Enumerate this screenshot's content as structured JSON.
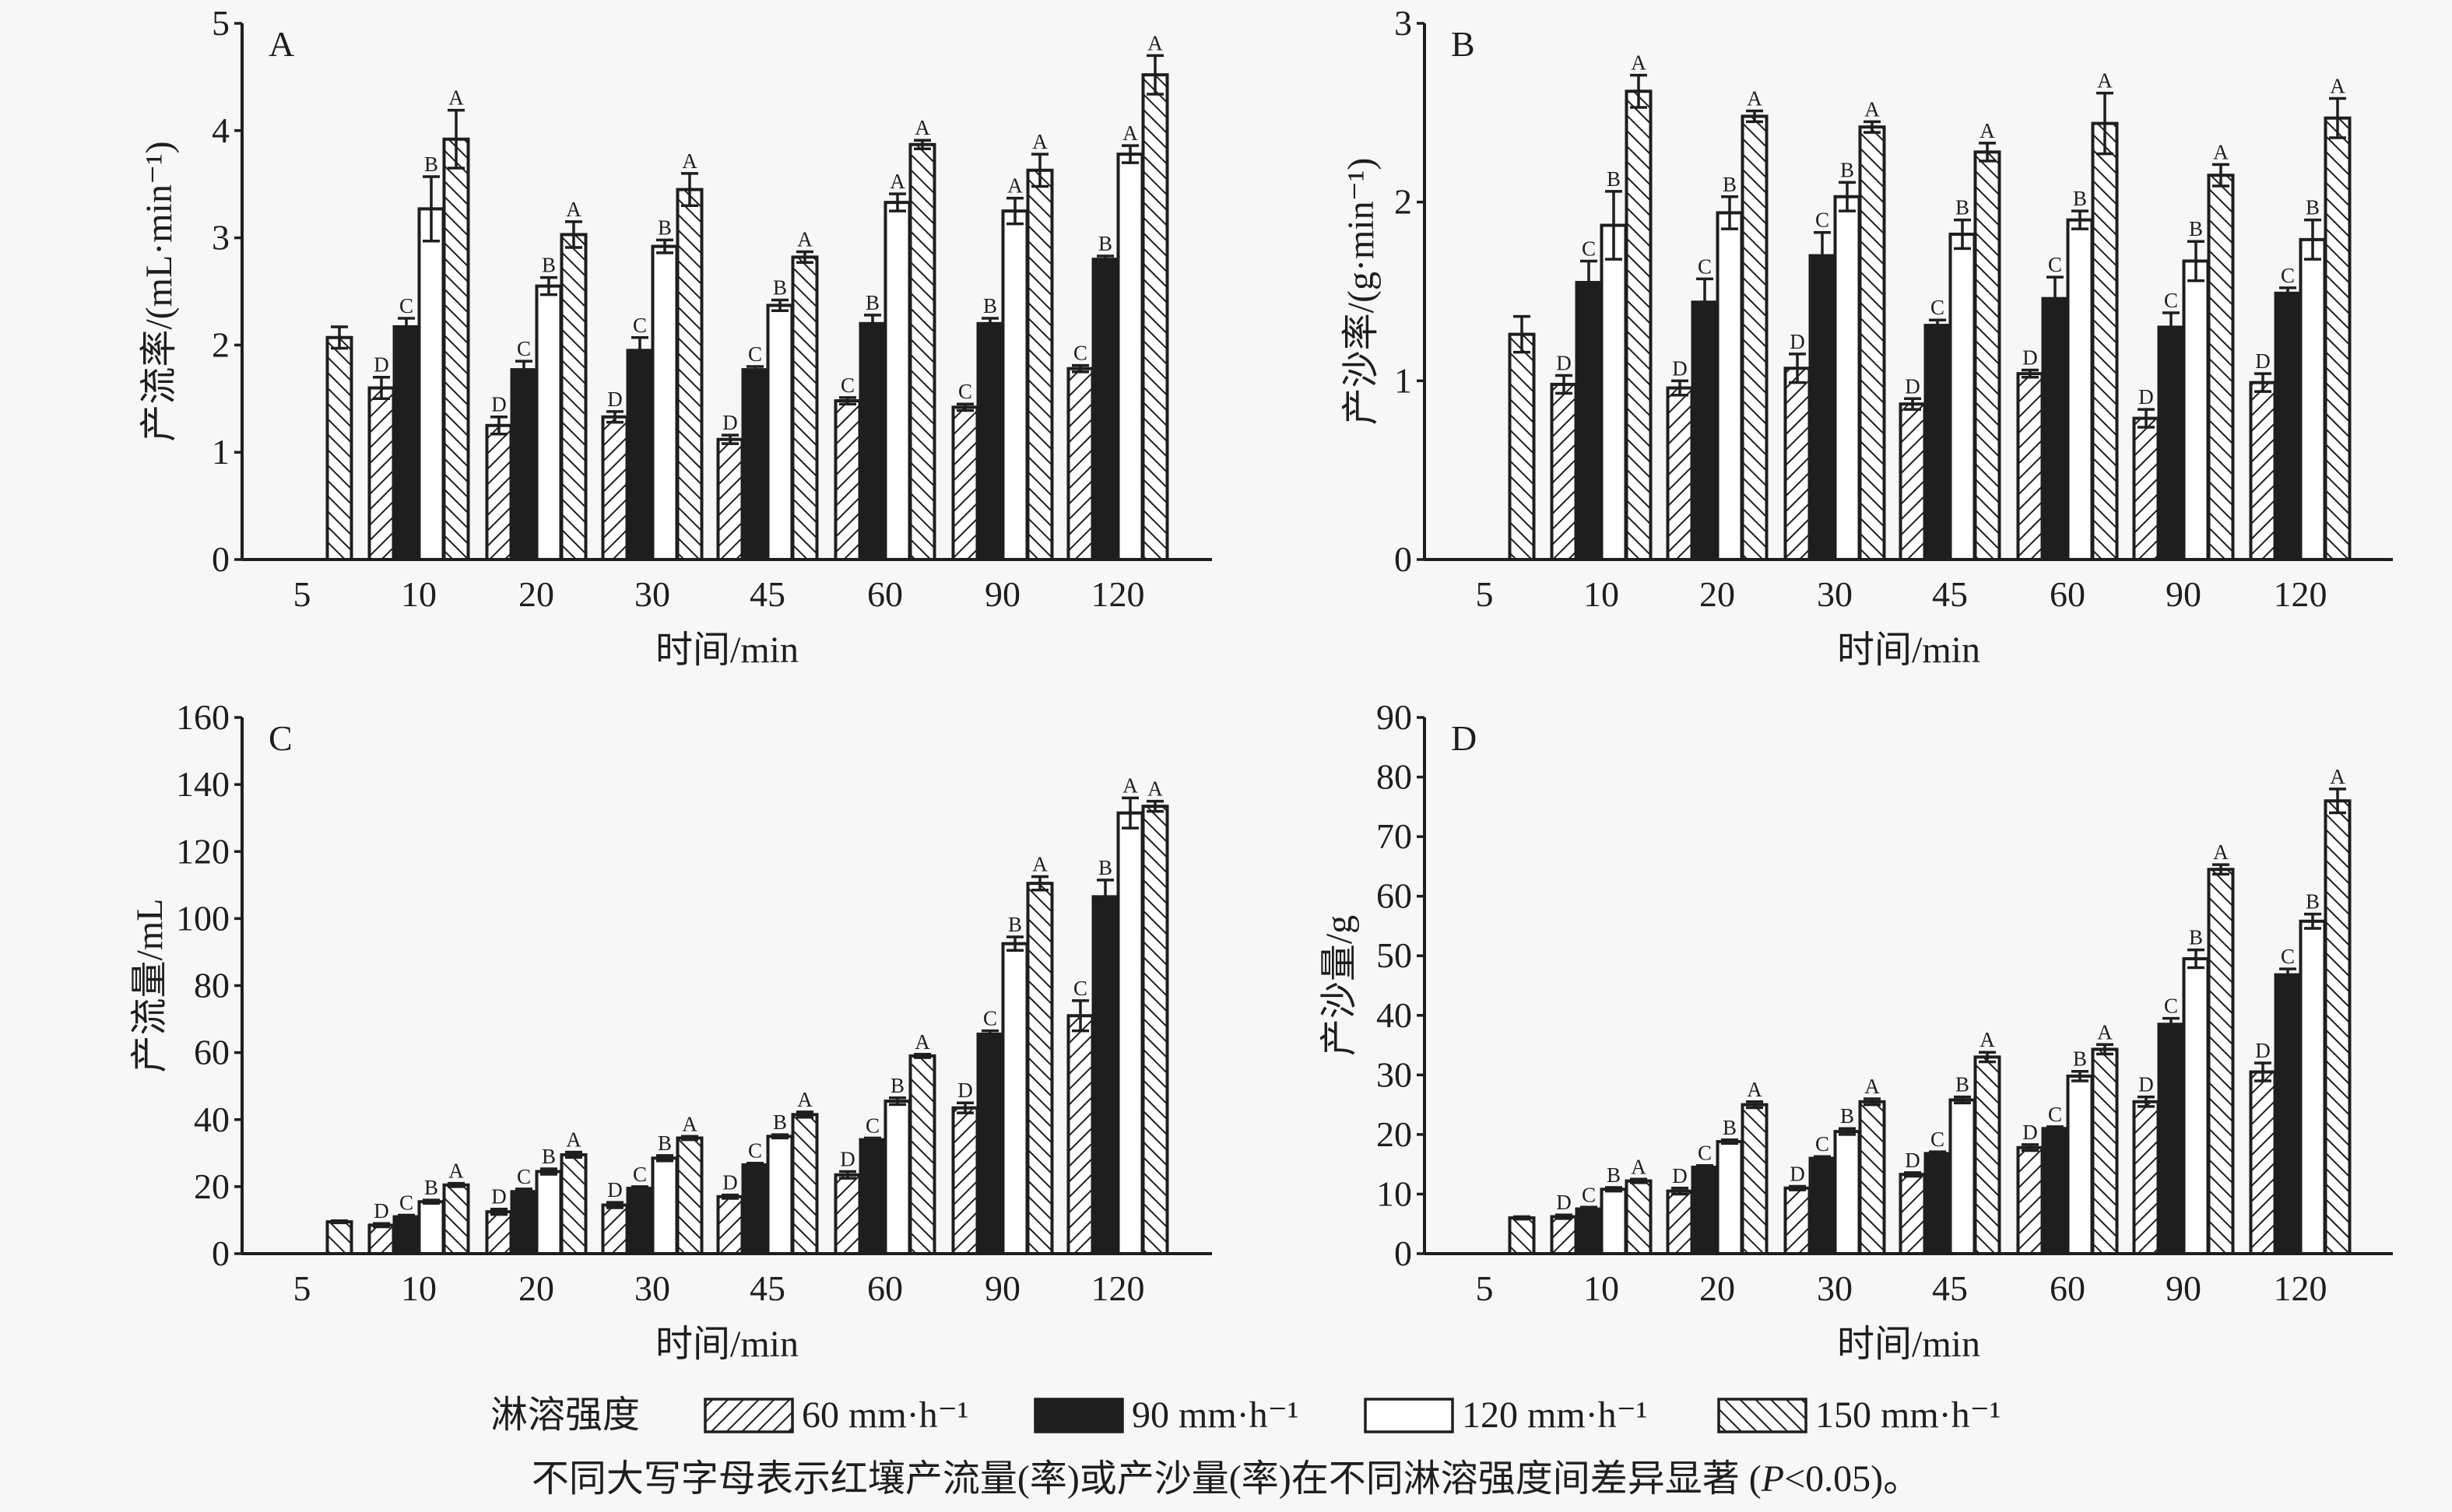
{
  "legend": {
    "title": "淋溶强度",
    "items": [
      "60 mm·h⁻¹",
      "90 mm·h⁻¹",
      "120 mm·h⁻¹",
      "150 mm·h⁻¹"
    ]
  },
  "footnote": {
    "before": "不同大写字母表示红壤产流量(率)或产沙量(率)在不同淋溶强度间差异显著 (",
    "p": "P",
    "after": "<0.05)。"
  },
  "colors": {
    "ink": "#1e1e1e",
    "background": "#f7f7f7"
  },
  "chart_data": [
    {
      "type": "bar",
      "panel": "A",
      "categories": [
        "5",
        "10",
        "20",
        "30",
        "45",
        "60",
        "90",
        "120"
      ],
      "xlabel": "时间/min",
      "ylabel": "产流率/(mL·min⁻¹)",
      "ylim": [
        0,
        5
      ],
      "yticks": [
        "0",
        "1",
        "2",
        "3",
        "4",
        "5"
      ],
      "series": [
        {
          "name": "60 mm·h⁻¹",
          "values": [
            null,
            1.6,
            1.25,
            1.33,
            1.12,
            1.48,
            1.42,
            1.78
          ],
          "errors": [
            null,
            0.1,
            0.08,
            0.05,
            0.04,
            0.03,
            0.03,
            0.03
          ],
          "letters": [
            null,
            "D",
            "D",
            "D",
            "D",
            "C",
            "C",
            "C"
          ]
        },
        {
          "name": "90 mm·h⁻¹",
          "values": [
            null,
            2.17,
            1.77,
            1.95,
            1.77,
            2.2,
            2.2,
            2.8
          ],
          "errors": [
            null,
            0.08,
            0.08,
            0.12,
            0.03,
            0.08,
            0.05,
            0.03
          ],
          "letters": [
            null,
            "C",
            "C",
            "C",
            "C",
            "B",
            "B",
            "B"
          ]
        },
        {
          "name": "120 mm·h⁻¹",
          "values": [
            null,
            3.27,
            2.55,
            2.92,
            2.37,
            3.33,
            3.25,
            3.78
          ],
          "errors": [
            null,
            0.3,
            0.08,
            0.06,
            0.05,
            0.08,
            0.12,
            0.08
          ],
          "letters": [
            null,
            "B",
            "B",
            "B",
            "B",
            "A",
            "A",
            "A"
          ]
        },
        {
          "name": "150 mm·h⁻¹",
          "values": [
            2.07,
            3.92,
            3.03,
            3.45,
            2.82,
            3.87,
            3.63,
            4.52
          ],
          "errors": [
            0.1,
            0.27,
            0.12,
            0.15,
            0.05,
            0.04,
            0.15,
            0.18
          ],
          "letters": [
            null,
            "A",
            "A",
            "A",
            "A",
            "A",
            "A",
            "A"
          ]
        }
      ]
    },
    {
      "type": "bar",
      "panel": "B",
      "categories": [
        "5",
        "10",
        "20",
        "30",
        "45",
        "60",
        "90",
        "120"
      ],
      "xlabel": "时间/min",
      "ylabel": "产沙率/(g·min⁻¹)",
      "ylim": [
        0,
        3
      ],
      "yticks": [
        "0",
        "1",
        "2",
        "3"
      ],
      "series": [
        {
          "name": "60 mm·h⁻¹",
          "values": [
            null,
            0.98,
            0.96,
            1.07,
            0.87,
            1.04,
            0.79,
            0.99
          ],
          "errors": [
            null,
            0.05,
            0.04,
            0.08,
            0.03,
            0.02,
            0.05,
            0.05
          ],
          "letters": [
            null,
            "D",
            "D",
            "D",
            "D",
            "D",
            "D",
            "D"
          ]
        },
        {
          "name": "90 mm·h⁻¹",
          "values": [
            null,
            1.55,
            1.44,
            1.7,
            1.31,
            1.46,
            1.3,
            1.49
          ],
          "errors": [
            null,
            0.12,
            0.13,
            0.13,
            0.03,
            0.12,
            0.08,
            0.03
          ],
          "letters": [
            null,
            "C",
            "C",
            "C",
            "C",
            "C",
            "C",
            "C"
          ]
        },
        {
          "name": "120 mm·h⁻¹",
          "values": [
            null,
            1.87,
            1.94,
            2.03,
            1.82,
            1.9,
            1.67,
            1.79
          ],
          "errors": [
            null,
            0.19,
            0.09,
            0.08,
            0.08,
            0.05,
            0.11,
            0.11
          ],
          "letters": [
            null,
            "B",
            "B",
            "B",
            "B",
            "B",
            "B",
            "B"
          ]
        },
        {
          "name": "150 mm·h⁻¹",
          "values": [
            1.26,
            2.62,
            2.48,
            2.42,
            2.28,
            2.44,
            2.15,
            2.47
          ],
          "errors": [
            0.1,
            0.09,
            0.03,
            0.03,
            0.05,
            0.17,
            0.06,
            0.11
          ],
          "letters": [
            null,
            "A",
            "A",
            "A",
            "A",
            "A",
            "A",
            "A"
          ]
        }
      ]
    },
    {
      "type": "bar",
      "panel": "C",
      "categories": [
        "5",
        "10",
        "20",
        "30",
        "45",
        "60",
        "90",
        "120"
      ],
      "xlabel": "时间/min",
      "ylabel": "产流量/mL",
      "ylim": [
        0,
        160
      ],
      "yticks": [
        "0",
        "20",
        "40",
        "60",
        "80",
        "100",
        "120",
        "140",
        "160"
      ],
      "series": [
        {
          "name": "60 mm·h⁻¹",
          "values": [
            null,
            8.5,
            12.5,
            14.5,
            17,
            23.5,
            43.5,
            71
          ],
          "errors": [
            null,
            0.5,
            0.8,
            0.8,
            0.5,
            1,
            1.5,
            4.5
          ],
          "letters": [
            null,
            "D",
            "D",
            "D",
            "D",
            "D",
            "D",
            "C"
          ]
        },
        {
          "name": "90 mm·h⁻¹",
          "values": [
            null,
            11,
            18.5,
            19.5,
            26.5,
            34,
            65.5,
            106.5
          ],
          "errors": [
            null,
            0.5,
            0.8,
            0.5,
            0.5,
            0.5,
            1,
            5
          ],
          "letters": [
            null,
            "C",
            "C",
            "C",
            "C",
            "C",
            "C",
            "B"
          ]
        },
        {
          "name": "120 mm·h⁻¹",
          "values": [
            null,
            15.5,
            24.5,
            28.5,
            35,
            45.5,
            92.5,
            131.5
          ],
          "errors": [
            null,
            0.5,
            0.8,
            0.8,
            0.5,
            1,
            2,
            4.5
          ],
          "letters": [
            null,
            "B",
            "B",
            "B",
            "B",
            "B",
            "B",
            "A"
          ]
        },
        {
          "name": "150 mm·h⁻¹",
          "values": [
            9.5,
            20.5,
            29.5,
            34.5,
            41.5,
            59,
            110.5,
            133.5
          ],
          "errors": [
            0.3,
            0.5,
            0.8,
            0.5,
            0.8,
            0.5,
            2,
            1.5
          ],
          "letters": [
            null,
            "A",
            "A",
            "A",
            "A",
            "A",
            "A",
            "A"
          ]
        }
      ]
    },
    {
      "type": "bar",
      "panel": "D",
      "categories": [
        "5",
        "10",
        "20",
        "30",
        "45",
        "60",
        "90",
        "120"
      ],
      "xlabel": "时间/min",
      "ylabel": "产沙量/g",
      "ylim": [
        0,
        90
      ],
      "yticks": [
        "0",
        "10",
        "20",
        "30",
        "40",
        "50",
        "60",
        "70",
        "80",
        "90"
      ],
      "series": [
        {
          "name": "60 mm·h⁻¹",
          "values": [
            null,
            6.2,
            10.5,
            11,
            13.3,
            17.8,
            25.5,
            30.5
          ],
          "errors": [
            null,
            0.3,
            0.5,
            0.3,
            0.3,
            0.5,
            0.8,
            1.5
          ],
          "letters": [
            null,
            "D",
            "D",
            "D",
            "D",
            "D",
            "D",
            "D"
          ]
        },
        {
          "name": "90 mm·h⁻¹",
          "values": [
            null,
            7.5,
            14.5,
            16,
            16.8,
            21,
            38.5,
            46.8
          ],
          "errors": [
            null,
            0.3,
            0.3,
            0.3,
            0.3,
            0.3,
            1,
            1
          ],
          "letters": [
            null,
            "C",
            "C",
            "C",
            "C",
            "C",
            "C",
            "C"
          ]
        },
        {
          "name": "120 mm·h⁻¹",
          "values": [
            null,
            10.8,
            18.8,
            20.5,
            25.8,
            29.8,
            49.5,
            55.8
          ],
          "errors": [
            null,
            0.3,
            0.3,
            0.5,
            0.5,
            0.8,
            1.5,
            1.2
          ],
          "letters": [
            null,
            "B",
            "B",
            "B",
            "B",
            "B",
            "B",
            "B"
          ]
        },
        {
          "name": "150 mm·h⁻¹",
          "values": [
            6,
            12.2,
            25,
            25.5,
            33,
            34.3,
            64.5,
            76
          ],
          "errors": [
            0.2,
            0.3,
            0.5,
            0.5,
            0.8,
            0.8,
            0.8,
            2
          ],
          "letters": [
            null,
            "A",
            "A",
            "A",
            "A",
            "A",
            "A",
            "A"
          ]
        }
      ]
    }
  ]
}
